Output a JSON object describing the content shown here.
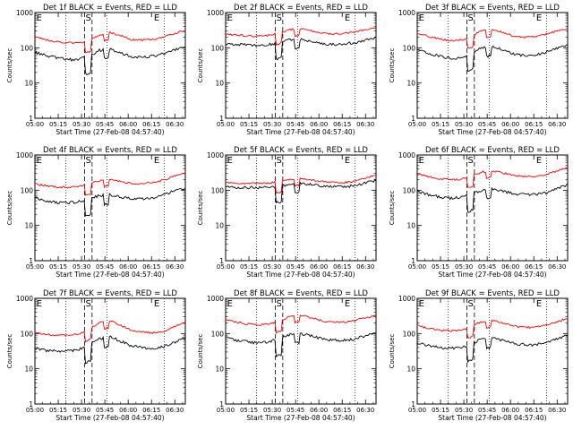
{
  "colors": {
    "events": "#000000",
    "lld": "#ff0000",
    "axes": "#000000"
  },
  "chart_data": [
    {
      "type": "line",
      "title": "Det 1f BLACK = Events, RED = LLD",
      "xlabel": "Start Time (27-Feb-08 04:57:40)",
      "ylabel": "Counts/sec",
      "yscale": "log",
      "ylim": [
        1,
        1000
      ],
      "xlim": [
        0,
        100
      ],
      "x_tick_labels": [
        "05:00",
        "05:15",
        "05:30",
        "05:45",
        "06:00",
        "06:15",
        "06:30"
      ],
      "y_tick_labels": [
        "1",
        "10",
        "100",
        "1000"
      ],
      "markers": [
        "E",
        "S",
        "E"
      ],
      "events_base": [
        75,
        60,
        52,
        47,
        46,
        55,
        85,
        90,
        70,
        55,
        54,
        58,
        68,
        85,
        110
      ],
      "lld_base": [
        210,
        170,
        150,
        140,
        135,
        150,
        230,
        270,
        220,
        170,
        165,
        175,
        200,
        260,
        310
      ],
      "series": [
        {
          "values": []
        },
        {
          "values": []
        }
      ]
    },
    {
      "type": "line",
      "title": "Det 2f BLACK = Events, RED = LLD",
      "xlabel": "Start Time (27-Feb-08 04:57:40)",
      "ylabel": "Counts/sec",
      "yscale": "log",
      "ylim": [
        1,
        1000
      ],
      "xlim": [
        0,
        100
      ],
      "x_tick_labels": [
        "05:00",
        "05:15",
        "05:30",
        "05:45",
        "06:00",
        "06:15",
        "06:30"
      ],
      "y_tick_labels": [
        "1",
        "10",
        "100",
        "1000"
      ],
      "markers": [
        "E",
        "S",
        "E"
      ],
      "events_base": [
        130,
        125,
        120,
        118,
        122,
        140,
        170,
        175,
        150,
        130,
        125,
        128,
        140,
        165,
        185
      ],
      "lld_base": [
        240,
        230,
        220,
        215,
        225,
        260,
        330,
        350,
        300,
        260,
        250,
        255,
        280,
        330,
        360
      ],
      "series": [
        {
          "values": []
        },
        {
          "values": []
        }
      ]
    },
    {
      "type": "line",
      "title": "Det 3f BLACK = Events, RED = LLD",
      "xlabel": "Start Time (27-Feb-08 04:57:40)",
      "ylabel": "Counts/sec",
      "yscale": "log",
      "ylim": [
        1,
        1000
      ],
      "xlim": [
        0,
        100
      ],
      "x_tick_labels": [
        "05:00",
        "05:15",
        "05:30",
        "05:45",
        "06:00",
        "06:15",
        "06:30"
      ],
      "y_tick_labels": [
        "1",
        "10",
        "100",
        "1000"
      ],
      "markers": [
        "E",
        "S",
        "E"
      ],
      "events_base": [
        90,
        70,
        58,
        50,
        52,
        65,
        100,
        110,
        85,
        65,
        60,
        64,
        75,
        95,
        120
      ],
      "lld_base": [
        260,
        210,
        180,
        160,
        165,
        200,
        300,
        330,
        270,
        210,
        200,
        210,
        240,
        300,
        360
      ],
      "series": [
        {
          "values": []
        },
        {
          "values": []
        }
      ]
    },
    {
      "type": "line",
      "title": "Det 4f BLACK = Events, RED = LLD",
      "xlabel": "Start Time (27-Feb-08 04:57:40)",
      "ylabel": "Counts/sec",
      "yscale": "log",
      "ylim": [
        1,
        1000
      ],
      "xlim": [
        0,
        100
      ],
      "x_tick_labels": [
        "05:00",
        "05:15",
        "05:30",
        "05:45",
        "06:00",
        "06:15",
        "06:30"
      ],
      "y_tick_labels": [
        "1",
        "10",
        "100",
        "1000"
      ],
      "markers": [
        "E",
        "S",
        "E"
      ],
      "events_base": [
        60,
        50,
        45,
        44,
        47,
        55,
        70,
        75,
        65,
        58,
        57,
        62,
        75,
        95,
        115
      ],
      "lld_base": [
        150,
        135,
        125,
        120,
        130,
        150,
        190,
        200,
        175,
        155,
        150,
        165,
        195,
        250,
        320
      ],
      "series": [
        {
          "values": []
        },
        {
          "values": []
        }
      ]
    },
    {
      "type": "line",
      "title": "Det 5f BLACK = Events, RED = LLD",
      "xlabel": "Start Time (27-Feb-08 04:57:40)",
      "ylabel": "Counts/sec",
      "yscale": "log",
      "ylim": [
        1,
        1000
      ],
      "xlim": [
        0,
        100
      ],
      "x_tick_labels": [
        "05:00",
        "05:15",
        "05:30",
        "05:45",
        "06:00",
        "06:15",
        "06:30"
      ],
      "y_tick_labels": [
        "1",
        "10",
        "100",
        "1000"
      ],
      "markers": [
        "E",
        "S",
        "E"
      ],
      "events_base": [
        130,
        120,
        118,
        118,
        120,
        130,
        150,
        155,
        145,
        130,
        125,
        125,
        135,
        160,
        190
      ],
      "lld_base": [
        170,
        160,
        155,
        155,
        160,
        175,
        205,
        215,
        195,
        175,
        165,
        165,
        180,
        215,
        260
      ],
      "series": [
        {
          "values": []
        },
        {
          "values": []
        }
      ]
    },
    {
      "type": "line",
      "title": "Det 6f BLACK = Events, RED = LLD",
      "xlabel": "Start Time (27-Feb-08 04:57:40)",
      "ylabel": "Counts/sec",
      "yscale": "log",
      "ylim": [
        1,
        1000
      ],
      "xlim": [
        0,
        100
      ],
      "x_tick_labels": [
        "05:00",
        "05:15",
        "05:30",
        "05:45",
        "06:00",
        "06:15",
        "06:30"
      ],
      "y_tick_labels": [
        "1",
        "10",
        "100",
        "1000"
      ],
      "markers": [
        "E",
        "S",
        "E"
      ],
      "events_base": [
        95,
        75,
        65,
        60,
        62,
        75,
        100,
        110,
        95,
        80,
        75,
        75,
        85,
        110,
        145
      ],
      "lld_base": [
        290,
        240,
        210,
        200,
        205,
        245,
        330,
        360,
        310,
        260,
        245,
        245,
        275,
        350,
        450
      ],
      "series": [
        {
          "values": []
        },
        {
          "values": []
        }
      ]
    },
    {
      "type": "line",
      "title": "Det 7f BLACK = Events, RED = LLD",
      "xlabel": "Start Time (27-Feb-08 04:57:40)",
      "ylabel": "Counts/sec",
      "yscale": "log",
      "ylim": [
        1,
        1000
      ],
      "xlim": [
        0,
        100
      ],
      "x_tick_labels": [
        "05:00",
        "05:15",
        "05:30",
        "05:45",
        "06:00",
        "06:15",
        "06:30"
      ],
      "y_tick_labels": [
        "1",
        "10",
        "100",
        "1000"
      ],
      "markers": [
        "E",
        "S",
        "E"
      ],
      "events_base": [
        38,
        33,
        32,
        32,
        34,
        45,
        70,
        80,
        60,
        45,
        40,
        38,
        42,
        55,
        75
      ],
      "lld_base": [
        105,
        95,
        90,
        90,
        95,
        125,
        200,
        230,
        170,
        125,
        110,
        105,
        115,
        155,
        210
      ],
      "series": [
        {
          "values": []
        },
        {
          "values": []
        }
      ]
    },
    {
      "type": "line",
      "title": "Det 8f BLACK = Events, RED = LLD",
      "xlabel": "Start Time (27-Feb-08 04:57:40)",
      "ylabel": "Counts/sec",
      "yscale": "log",
      "ylim": [
        1,
        1000
      ],
      "xlim": [
        0,
        100
      ],
      "x_tick_labels": [
        "05:00",
        "05:15",
        "05:30",
        "05:45",
        "06:00",
        "06:15",
        "06:30"
      ],
      "y_tick_labels": [
        "1",
        "10",
        "100",
        "1000"
      ],
      "markers": [
        "E",
        "S",
        "E"
      ],
      "events_base": [
        80,
        65,
        58,
        55,
        58,
        70,
        95,
        100,
        85,
        70,
        65,
        65,
        70,
        85,
        100
      ],
      "lld_base": [
        260,
        210,
        185,
        175,
        185,
        225,
        310,
        330,
        280,
        230,
        210,
        210,
        230,
        280,
        330
      ],
      "series": [
        {
          "values": []
        },
        {
          "values": []
        }
      ]
    },
    {
      "type": "line",
      "title": "Det 9f BLACK = Events, RED = LLD",
      "xlabel": "Start Time (27-Feb-08 04:57:40)",
      "ylabel": "Counts/sec",
      "yscale": "log",
      "ylim": [
        1,
        1000
      ],
      "xlim": [
        0,
        100
      ],
      "x_tick_labels": [
        "05:00",
        "05:15",
        "05:30",
        "05:45",
        "06:00",
        "06:15",
        "06:30"
      ],
      "y_tick_labels": [
        "1",
        "10",
        "100",
        "1000"
      ],
      "markers": [
        "E",
        "S",
        "E"
      ],
      "events_base": [
        55,
        45,
        40,
        38,
        40,
        50,
        70,
        75,
        62,
        52,
        48,
        48,
        55,
        70,
        90
      ],
      "lld_base": [
        170,
        140,
        125,
        120,
        125,
        155,
        215,
        235,
        195,
        160,
        150,
        150,
        170,
        215,
        270
      ],
      "series": [
        {
          "values": []
        },
        {
          "values": []
        }
      ]
    }
  ]
}
